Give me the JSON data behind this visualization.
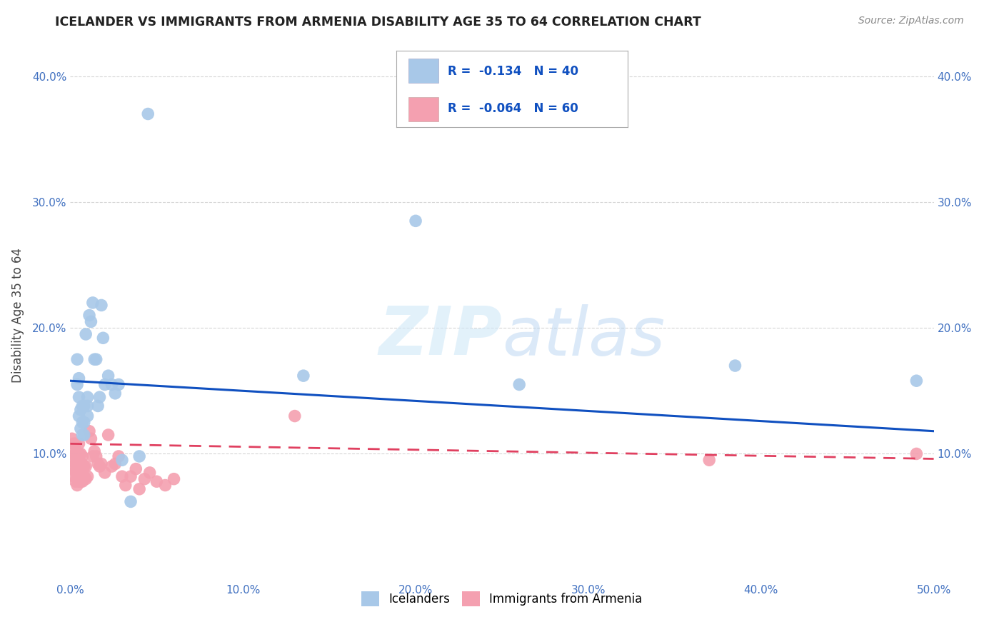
{
  "title": "ICELANDER VS IMMIGRANTS FROM ARMENIA DISABILITY AGE 35 TO 64 CORRELATION CHART",
  "source": "Source: ZipAtlas.com",
  "ylabel": "Disability Age 35 to 64",
  "xlim": [
    0.0,
    0.5
  ],
  "ylim": [
    0.0,
    0.42
  ],
  "xticks": [
    0.0,
    0.1,
    0.2,
    0.3,
    0.4,
    0.5
  ],
  "yticks": [
    0.1,
    0.2,
    0.3,
    0.4
  ],
  "xlabel_labels": [
    "0.0%",
    "10.0%",
    "20.0%",
    "30.0%",
    "40.0%",
    "50.0%"
  ],
  "ylabel_labels": [
    "10.0%",
    "20.0%",
    "30.0%",
    "40.0%"
  ],
  "right_ylabel_labels": [
    "10.0%",
    "20.0%",
    "30.0%",
    "40.0%"
  ],
  "blue_R": "-0.134",
  "blue_N": "40",
  "pink_R": "-0.064",
  "pink_N": "60",
  "legend1_label": "Icelanders",
  "legend2_label": "Immigrants from Armenia",
  "blue_color": "#a8c8e8",
  "pink_color": "#f4a0b0",
  "blue_line_color": "#1050c0",
  "pink_line_color": "#e04060",
  "watermark_zip": "ZIP",
  "watermark_atlas": "atlas",
  "background_color": "#ffffff",
  "grid_color": "#cccccc",
  "blue_line_y0": 0.158,
  "blue_line_y1": 0.118,
  "pink_line_y0": 0.108,
  "pink_line_y1": 0.096,
  "blue_points_x": [
    0.004,
    0.004,
    0.005,
    0.005,
    0.005,
    0.006,
    0.006,
    0.007,
    0.007,
    0.007,
    0.008,
    0.008,
    0.008,
    0.009,
    0.01,
    0.01,
    0.01,
    0.011,
    0.012,
    0.013,
    0.014,
    0.015,
    0.016,
    0.017,
    0.018,
    0.019,
    0.02,
    0.022,
    0.024,
    0.026,
    0.028,
    0.03,
    0.035,
    0.04,
    0.045,
    0.135,
    0.2,
    0.26,
    0.385,
    0.49
  ],
  "blue_points_y": [
    0.155,
    0.175,
    0.13,
    0.145,
    0.16,
    0.12,
    0.135,
    0.115,
    0.125,
    0.138,
    0.115,
    0.125,
    0.138,
    0.195,
    0.13,
    0.138,
    0.145,
    0.21,
    0.205,
    0.22,
    0.175,
    0.175,
    0.138,
    0.145,
    0.218,
    0.192,
    0.155,
    0.162,
    0.155,
    0.148,
    0.155,
    0.095,
    0.062,
    0.098,
    0.37,
    0.162,
    0.285,
    0.155,
    0.17,
    0.158
  ],
  "pink_points_x": [
    0.001,
    0.001,
    0.002,
    0.002,
    0.002,
    0.002,
    0.003,
    0.003,
    0.003,
    0.003,
    0.003,
    0.004,
    0.004,
    0.004,
    0.004,
    0.005,
    0.005,
    0.005,
    0.005,
    0.005,
    0.005,
    0.006,
    0.006,
    0.006,
    0.006,
    0.007,
    0.007,
    0.007,
    0.007,
    0.008,
    0.008,
    0.009,
    0.009,
    0.01,
    0.011,
    0.012,
    0.013,
    0.014,
    0.015,
    0.016,
    0.017,
    0.018,
    0.02,
    0.022,
    0.024,
    0.026,
    0.028,
    0.03,
    0.032,
    0.035,
    0.038,
    0.04,
    0.043,
    0.046,
    0.05,
    0.055,
    0.06,
    0.13,
    0.37,
    0.49
  ],
  "pink_points_y": [
    0.1,
    0.112,
    0.082,
    0.09,
    0.098,
    0.108,
    0.078,
    0.086,
    0.092,
    0.1,
    0.108,
    0.075,
    0.082,
    0.09,
    0.098,
    0.078,
    0.082,
    0.088,
    0.095,
    0.1,
    0.108,
    0.078,
    0.085,
    0.092,
    0.1,
    0.078,
    0.085,
    0.092,
    0.098,
    0.082,
    0.09,
    0.08,
    0.09,
    0.082,
    0.118,
    0.112,
    0.098,
    0.102,
    0.098,
    0.092,
    0.09,
    0.092,
    0.085,
    0.115,
    0.09,
    0.092,
    0.098,
    0.082,
    0.075,
    0.082,
    0.088,
    0.072,
    0.08,
    0.085,
    0.078,
    0.075,
    0.08,
    0.13,
    0.095,
    0.1
  ]
}
